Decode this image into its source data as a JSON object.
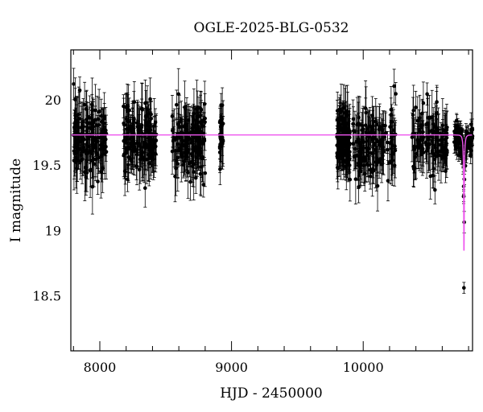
{
  "chart_data": {
    "type": "scatter",
    "title": "OGLE-2025-BLG-0532",
    "xlabel": "HJD - 2450000",
    "ylabel": "I magnitude",
    "xlim": [
      7780,
      10830
    ],
    "ylim": [
      20.38,
      18.08
    ],
    "y_inverted": true,
    "x_ticks": [
      8000,
      9000,
      10000
    ],
    "y_ticks": [
      18.5,
      19,
      19.5,
      20
    ],
    "x_tick_labels": [
      "8000",
      "9000",
      "10000"
    ],
    "y_tick_labels": [
      "18.5",
      "19",
      "19.5",
      "20"
    ],
    "x_minor_step": 200,
    "y_minor_step": 0.1,
    "grid": false,
    "colors": {
      "data": "#000000",
      "model": "#ee55ee"
    },
    "baseline_mag": 19.73,
    "seasons": [
      {
        "x_start": 7800,
        "x_end": 8050,
        "n": 150,
        "mean": 19.7,
        "scatter": 0.14,
        "err": 0.15
      },
      {
        "x_start": 8180,
        "x_end": 8430,
        "n": 150,
        "mean": 19.7,
        "scatter": 0.13,
        "err": 0.14
      },
      {
        "x_start": 8550,
        "x_end": 8800,
        "n": 150,
        "mean": 19.68,
        "scatter": 0.13,
        "err": 0.15
      },
      {
        "x_start": 8910,
        "x_end": 8940,
        "n": 25,
        "mean": 19.72,
        "scatter": 0.12,
        "err": 0.13
      },
      {
        "x_start": 9800,
        "x_end": 9900,
        "n": 120,
        "mean": 19.72,
        "scatter": 0.13,
        "err": 0.14
      },
      {
        "x_start": 9920,
        "x_end": 10250,
        "n": 150,
        "mean": 19.67,
        "scatter": 0.13,
        "err": 0.14
      },
      {
        "x_start": 10370,
        "x_end": 10640,
        "n": 120,
        "mean": 19.7,
        "scatter": 0.12,
        "err": 0.14
      },
      {
        "x_start": 10690,
        "x_end": 10830,
        "n": 130,
        "mean": 19.7,
        "scatter": 0.05,
        "err": 0.06
      }
    ],
    "model": {
      "baseline_mag": 19.73,
      "peak_mag": 18.47,
      "t0": 10765,
      "tE": 13,
      "samples": [
        {
          "x": 7780,
          "y": 19.73
        },
        {
          "x": 10600,
          "y": 19.73
        },
        {
          "x": 10700,
          "y": 19.71
        },
        {
          "x": 10730,
          "y": 19.55
        },
        {
          "x": 10750,
          "y": 19.05
        },
        {
          "x": 10765,
          "y": 18.47
        },
        {
          "x": 10780,
          "y": 19.05
        },
        {
          "x": 10800,
          "y": 19.55
        },
        {
          "x": 10830,
          "y": 19.71
        }
      ]
    }
  }
}
